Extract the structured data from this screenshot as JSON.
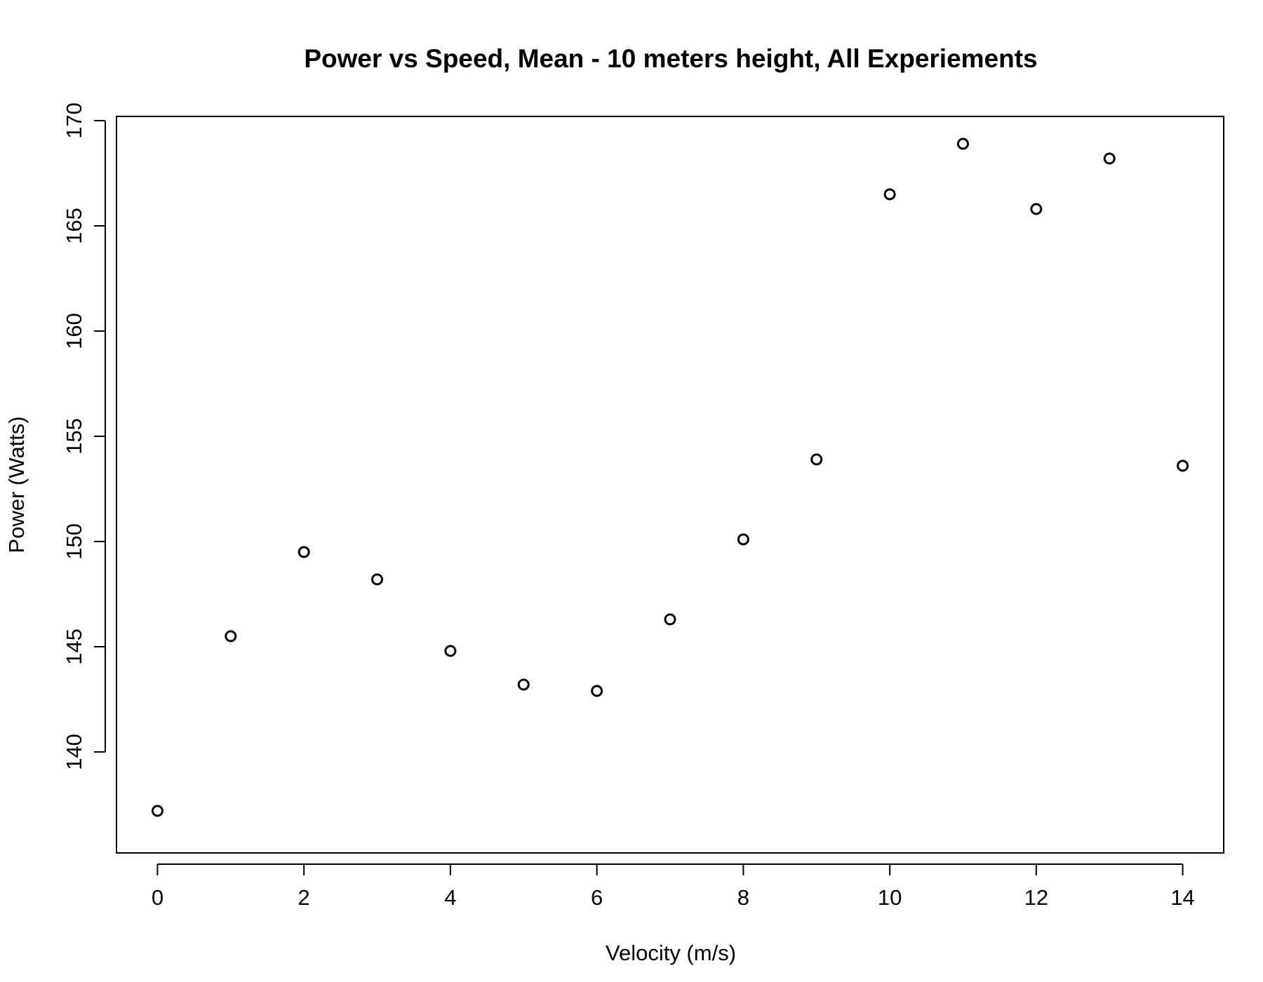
{
  "chart_data": {
    "type": "scatter",
    "title": "Power vs Speed, Mean - 10 meters height, All Experiements",
    "xlabel": "Velocity (m/s)",
    "ylabel": "Power (Watts)",
    "xlim": [
      -0.56,
      14.56
    ],
    "ylim": [
      135.2,
      170.2
    ],
    "xticks": [
      0,
      2,
      4,
      6,
      8,
      10,
      12,
      14
    ],
    "yticks": [
      140,
      145,
      150,
      155,
      160,
      165,
      170
    ],
    "x": [
      0,
      1,
      2,
      3,
      4,
      5,
      6,
      7,
      8,
      9,
      10,
      11,
      12,
      13,
      14
    ],
    "y": [
      137.2,
      145.5,
      149.5,
      148.2,
      144.8,
      143.2,
      142.9,
      146.3,
      150.1,
      153.9,
      166.5,
      168.9,
      165.8,
      168.2,
      153.6
    ],
    "grid": false,
    "marker": "open-circle",
    "colors": {
      "points": "#000000",
      "axes": "#000000"
    }
  }
}
